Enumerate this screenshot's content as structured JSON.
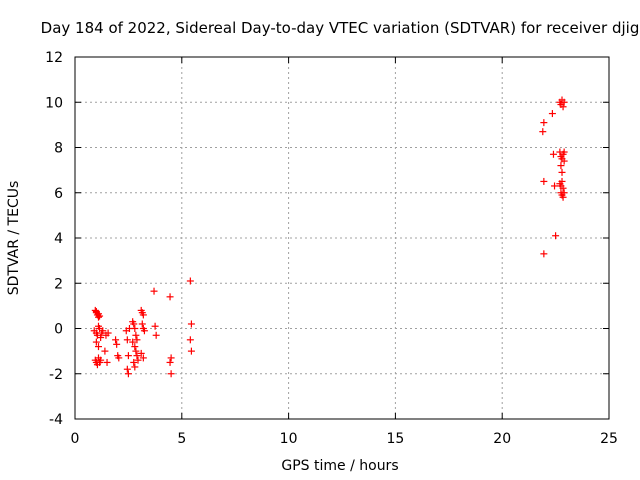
{
  "chart_data": {
    "type": "scatter",
    "title": "Day 184 of 2022, Sidereal Day-to-day VTEC variation (SDTVAR) for receiver djig",
    "xlabel": "GPS time / hours",
    "ylabel": "SDTVAR / TECUs",
    "xlim": [
      0,
      25
    ],
    "ylim": [
      -4,
      12
    ],
    "xticks": [
      0,
      5,
      10,
      15,
      20,
      25
    ],
    "yticks": [
      -4,
      -2,
      0,
      2,
      4,
      6,
      8,
      10,
      12
    ],
    "xtick_labels": [
      "0",
      "5",
      "10",
      "15",
      "20",
      "25"
    ],
    "ytick_labels": [
      "-4",
      "-2",
      "0",
      "2",
      "4",
      "6",
      "8",
      "10",
      "12"
    ],
    "grid": true,
    "marker": "plus",
    "series": [
      {
        "name": "SDTVAR",
        "color": "#ff0000",
        "points": [
          [
            0.95,
            0.8
          ],
          [
            1.0,
            0.7
          ],
          [
            1.05,
            0.6
          ],
          [
            1.1,
            0.65
          ],
          [
            1.15,
            0.55
          ],
          [
            1.0,
            0.75
          ],
          [
            1.1,
            0.5
          ],
          [
            0.9,
            -0.1
          ],
          [
            1.0,
            -0.2
          ],
          [
            1.05,
            -0.3
          ],
          [
            1.1,
            0.1
          ],
          [
            1.15,
            0.0
          ],
          [
            1.2,
            -0.4
          ],
          [
            1.0,
            -0.6
          ],
          [
            1.1,
            -0.8
          ],
          [
            1.25,
            -0.2
          ],
          [
            1.3,
            -0.1
          ],
          [
            0.95,
            -1.4
          ],
          [
            1.0,
            -1.5
          ],
          [
            1.05,
            -1.6
          ],
          [
            1.1,
            -1.3
          ],
          [
            1.15,
            -1.5
          ],
          [
            1.2,
            -1.4
          ],
          [
            1.4,
            -1.0
          ],
          [
            1.45,
            -0.3
          ],
          [
            1.5,
            -1.5
          ],
          [
            1.55,
            -0.2
          ],
          [
            1.9,
            -0.5
          ],
          [
            1.95,
            -0.7
          ],
          [
            2.0,
            -1.2
          ],
          [
            2.05,
            -1.3
          ],
          [
            2.4,
            -0.1
          ],
          [
            2.45,
            -0.5
          ],
          [
            2.5,
            -1.2
          ],
          [
            2.45,
            -1.8
          ],
          [
            2.5,
            -2.0
          ],
          [
            2.55,
            0.0
          ],
          [
            2.7,
            0.3
          ],
          [
            2.75,
            0.2
          ],
          [
            2.8,
            0.0
          ],
          [
            2.85,
            -0.3
          ],
          [
            2.9,
            -0.5
          ],
          [
            2.8,
            -0.8
          ],
          [
            2.85,
            -1.0
          ],
          [
            2.9,
            -1.2
          ],
          [
            2.75,
            -1.5
          ],
          [
            2.8,
            -1.7
          ],
          [
            2.95,
            -1.4
          ],
          [
            2.7,
            -0.6
          ],
          [
            3.1,
            0.8
          ],
          [
            3.15,
            0.7
          ],
          [
            3.2,
            0.6
          ],
          [
            3.15,
            0.2
          ],
          [
            3.2,
            0.0
          ],
          [
            3.25,
            -0.1
          ],
          [
            3.1,
            -1.1
          ],
          [
            3.2,
            -1.3
          ],
          [
            3.7,
            1.65
          ],
          [
            3.75,
            0.1
          ],
          [
            3.8,
            -0.3
          ],
          [
            4.45,
            1.4
          ],
          [
            4.5,
            -1.3
          ],
          [
            4.45,
            -1.5
          ],
          [
            4.5,
            -2.0
          ],
          [
            5.4,
            2.1
          ],
          [
            5.45,
            0.2
          ],
          [
            5.4,
            -0.5
          ],
          [
            5.45,
            -1.0
          ],
          [
            21.95,
            3.3
          ],
          [
            21.95,
            6.5
          ],
          [
            21.9,
            8.7
          ],
          [
            21.95,
            9.1
          ],
          [
            22.35,
            9.5
          ],
          [
            22.4,
            7.7
          ],
          [
            22.45,
            6.3
          ],
          [
            22.5,
            4.1
          ],
          [
            22.7,
            6.4
          ],
          [
            22.75,
            6.3
          ],
          [
            22.8,
            6.5
          ],
          [
            22.85,
            6.2
          ],
          [
            22.75,
            6.0
          ],
          [
            22.8,
            5.9
          ],
          [
            22.85,
            5.8
          ],
          [
            22.9,
            6.0
          ],
          [
            22.7,
            7.8
          ],
          [
            22.75,
            7.6
          ],
          [
            22.8,
            7.5
          ],
          [
            22.85,
            7.7
          ],
          [
            22.9,
            7.4
          ],
          [
            22.75,
            7.2
          ],
          [
            22.8,
            6.9
          ],
          [
            22.9,
            7.8
          ],
          [
            22.7,
            10.0
          ],
          [
            22.75,
            9.9
          ],
          [
            22.8,
            10.1
          ],
          [
            22.85,
            9.8
          ],
          [
            22.9,
            10.0
          ]
        ]
      }
    ]
  }
}
